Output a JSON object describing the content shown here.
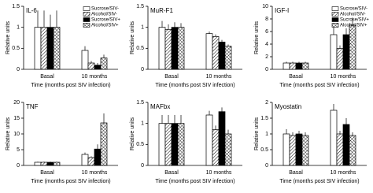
{
  "chart_data": [
    {
      "type": "bar",
      "title": "IL-6",
      "xlabel": "Time (months post SIV infection)",
      "ylabel": "Relative units",
      "categories": [
        "Basal",
        "10 months"
      ],
      "ylim": [
        0,
        1.5
      ],
      "yticks": [
        0,
        0.5,
        1,
        1.5
      ],
      "legend": "upper right",
      "series": [
        {
          "name": "Sucrose/SIV-",
          "color": "#ffffff",
          "pattern": "none",
          "values": [
            1.0,
            0.45
          ],
          "errors": [
            0.4,
            0.1
          ]
        },
        {
          "name": "Alcohol/SIV-",
          "color": "#ffffff",
          "pattern": "hatch",
          "values": [
            1.0,
            0.15
          ],
          "errors": [
            0.4,
            0.05
          ]
        },
        {
          "name": "Sucrose/SIV+",
          "color": "#000000",
          "pattern": "none",
          "values": [
            1.0,
            0.1
          ],
          "errors": [
            0.3,
            0.05
          ]
        },
        {
          "name": "Alcohol/SIV+",
          "color": "#ffffff",
          "pattern": "cross",
          "values": [
            1.0,
            0.27
          ],
          "errors": [
            0.4,
            0.08
          ]
        }
      ]
    },
    {
      "type": "bar",
      "title": "MuR-F1",
      "xlabel": "Time (months post SIV infection)",
      "ylabel": "Relative units",
      "categories": [
        "Basal",
        "10 months"
      ],
      "ylim": [
        0,
        1.5
      ],
      "yticks": [
        0,
        0.5,
        1,
        1.5
      ],
      "series": [
        {
          "color": "#ffffff",
          "pattern": "none",
          "values": [
            1.0,
            0.85
          ],
          "errors": [
            0.15,
            0.05
          ]
        },
        {
          "color": "#ffffff",
          "pattern": "hatch",
          "values": [
            0.95,
            0.78
          ],
          "errors": [
            0.12,
            0.05
          ]
        },
        {
          "color": "#000000",
          "pattern": "none",
          "values": [
            1.0,
            0.65
          ],
          "errors": [
            0.12,
            0.05
          ]
        },
        {
          "color": "#ffffff",
          "pattern": "cross",
          "values": [
            1.0,
            0.55
          ],
          "errors": [
            0.1,
            0.04
          ]
        }
      ]
    },
    {
      "type": "bar",
      "title": "IGF-I",
      "xlabel": "Time (months post SIV infection)",
      "ylabel": "Relative units",
      "categories": [
        "Basal",
        "10 months"
      ],
      "ylim": [
        0,
        10
      ],
      "yticks": [
        0,
        2,
        4,
        6,
        8,
        10
      ],
      "legend": "upper right",
      "series": [
        {
          "name": "Sucrose/SIV-",
          "color": "#ffffff",
          "pattern": "none",
          "values": [
            1.0,
            5.5
          ],
          "errors": [
            0.2,
            1.5
          ]
        },
        {
          "name": "Alcohol/SIV-",
          "color": "#ffffff",
          "pattern": "hatch",
          "values": [
            1.0,
            3.3
          ],
          "errors": [
            0.2,
            0.5
          ]
        },
        {
          "name": "Sucrose/SIV+",
          "color": "#000000",
          "pattern": "none",
          "values": [
            1.0,
            5.5
          ],
          "errors": [
            0.2,
            1.0
          ]
        },
        {
          "name": "Alcohol/SIV+",
          "color": "#ffffff",
          "pattern": "cross",
          "values": [
            1.0,
            7.0
          ],
          "errors": [
            0.2,
            1.2
          ]
        }
      ]
    },
    {
      "type": "bar",
      "title": "TNF",
      "xlabel": "Time (months post SIV infection)",
      "ylabel": "Relative units",
      "categories": [
        "Basal",
        "10 months"
      ],
      "ylim": [
        0,
        20
      ],
      "yticks": [
        0,
        5,
        10,
        15,
        20
      ],
      "series": [
        {
          "color": "#ffffff",
          "pattern": "none",
          "values": [
            1.0,
            3.5
          ],
          "errors": [
            0.2,
            0.6
          ]
        },
        {
          "color": "#ffffff",
          "pattern": "hatch",
          "values": [
            1.0,
            2.5
          ],
          "errors": [
            0.2,
            0.4
          ]
        },
        {
          "color": "#000000",
          "pattern": "none",
          "values": [
            1.0,
            5.2
          ],
          "errors": [
            0.2,
            1.5
          ]
        },
        {
          "color": "#ffffff",
          "pattern": "cross",
          "values": [
            1.0,
            13.5
          ],
          "errors": [
            0.2,
            3.0
          ]
        }
      ]
    },
    {
      "type": "bar",
      "title": "MAFbx",
      "xlabel": "Time (months post SIV infection)",
      "ylabel": "Relative units",
      "categories": [
        "Basal",
        "10 months"
      ],
      "ylim": [
        0,
        1.5
      ],
      "yticks": [
        0,
        0.5,
        1,
        1.5
      ],
      "series": [
        {
          "color": "#ffffff",
          "pattern": "none",
          "values": [
            1.0,
            1.2
          ],
          "errors": [
            0.2,
            0.1
          ]
        },
        {
          "color": "#ffffff",
          "pattern": "hatch",
          "values": [
            1.0,
            0.85
          ],
          "errors": [
            0.2,
            0.1
          ]
        },
        {
          "color": "#000000",
          "pattern": "none",
          "values": [
            1.0,
            1.28
          ],
          "errors": [
            0.2,
            0.1
          ]
        },
        {
          "color": "#ffffff",
          "pattern": "cross",
          "values": [
            1.0,
            0.75
          ],
          "errors": [
            0.2,
            0.1
          ]
        }
      ]
    },
    {
      "type": "bar",
      "title": "Myostatin",
      "xlabel": "Time (months post SIV infection)",
      "ylabel": "Relative units",
      "categories": [
        "Basal",
        "10 months"
      ],
      "ylim": [
        0,
        2
      ],
      "yticks": [
        0,
        0.5,
        1,
        1.5,
        2
      ],
      "series": [
        {
          "color": "#ffffff",
          "pattern": "none",
          "values": [
            1.0,
            1.75
          ],
          "errors": [
            0.15,
            0.2
          ]
        },
        {
          "color": "#ffffff",
          "pattern": "hatch",
          "values": [
            0.95,
            1.0
          ],
          "errors": [
            0.1,
            0.1
          ]
        },
        {
          "color": "#000000",
          "pattern": "none",
          "values": [
            1.0,
            1.3
          ],
          "errors": [
            0.1,
            0.2
          ]
        },
        {
          "color": "#ffffff",
          "pattern": "cross",
          "values": [
            0.95,
            0.95
          ],
          "errors": [
            0.1,
            0.1
          ]
        }
      ]
    }
  ]
}
